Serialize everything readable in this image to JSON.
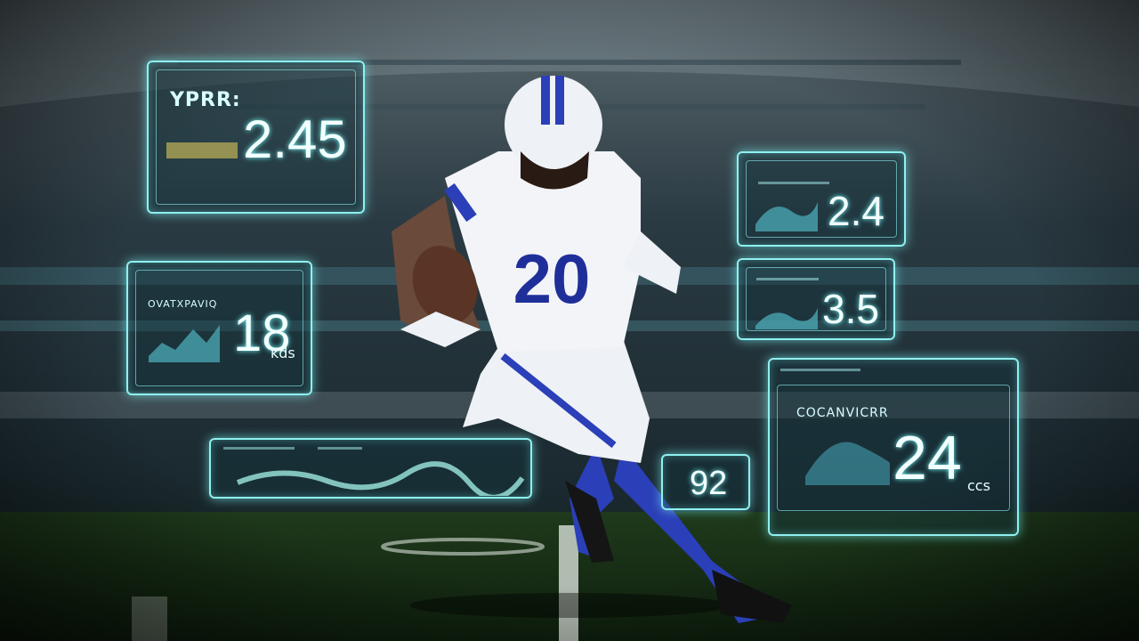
{
  "jersey_number": "20",
  "panels": [
    {
      "label": "YPRR:",
      "value": "2.45"
    },
    {
      "value": "2.4"
    },
    {
      "value": "3.5"
    },
    {
      "label": "OVATXPAVIQ",
      "value": "18",
      "unit": "kds"
    },
    {
      "value": "92"
    },
    {
      "label": "COCANVICRR",
      "value": "24",
      "unit": "ccs"
    }
  ]
}
